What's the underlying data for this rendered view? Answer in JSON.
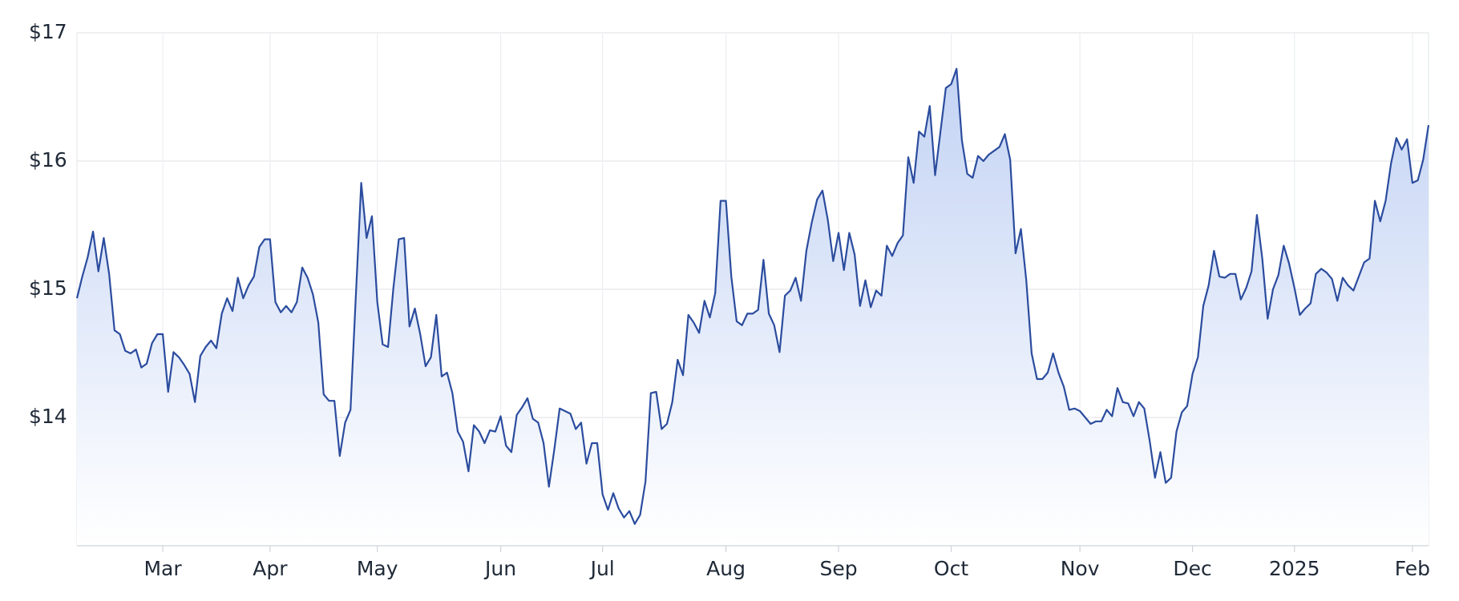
{
  "chart_data": {
    "type": "area",
    "color": "#2b4c9e",
    "fill_top": "#c3d3f4",
    "fill_bottom": "#ffffff",
    "grid": true,
    "values": [
      14.93,
      15.1,
      15.25,
      15.45,
      15.14,
      15.4,
      15.12,
      14.68,
      14.65,
      14.52,
      14.5,
      14.53,
      14.39,
      14.42,
      14.58,
      14.65,
      14.65,
      14.2,
      14.51,
      14.47,
      14.41,
      14.34,
      14.12,
      14.48,
      14.55,
      14.6,
      14.54,
      14.81,
      14.93,
      14.83,
      15.09,
      14.93,
      15.03,
      15.1,
      15.33,
      15.39,
      15.39,
      14.9,
      14.82,
      14.87,
      14.82,
      14.9,
      15.17,
      15.09,
      14.96,
      14.74,
      14.18,
      14.13,
      14.13,
      13.7,
      13.96,
      14.06,
      14.95,
      15.83,
      15.4,
      15.57,
      14.9,
      14.57,
      14.55,
      15.01,
      15.39,
      15.4,
      14.71,
      14.85,
      14.65,
      14.4,
      14.47,
      14.8,
      14.32,
      14.35,
      14.19,
      13.89,
      13.81,
      13.58,
      13.94,
      13.89,
      13.8,
      13.9,
      13.89,
      14.01,
      13.78,
      13.73,
      14.02,
      14.08,
      14.15,
      13.99,
      13.96,
      13.8,
      13.46,
      13.75,
      14.07,
      14.05,
      14.03,
      13.91,
      13.96,
      13.64,
      13.8,
      13.8,
      13.4,
      13.28,
      13.41,
      13.29,
      13.22,
      13.27,
      13.17,
      13.24,
      13.5,
      14.19,
      14.2,
      13.91,
      13.95,
      14.12,
      14.45,
      14.33,
      14.8,
      14.74,
      14.66,
      14.91,
      14.78,
      14.97,
      15.69,
      15.69,
      15.1,
      14.75,
      14.72,
      14.81,
      14.81,
      14.84,
      15.23,
      14.81,
      14.72,
      14.51,
      14.95,
      14.99,
      15.09,
      14.91,
      15.3,
      15.52,
      15.7,
      15.77,
      15.54,
      15.22,
      15.44,
      15.15,
      15.44,
      15.27,
      14.87,
      15.07,
      14.86,
      14.99,
      14.95,
      15.34,
      15.26,
      15.36,
      15.42,
      16.03,
      15.83,
      16.23,
      16.19,
      16.43,
      15.89,
      16.23,
      16.57,
      16.6,
      16.72,
      16.16,
      15.9,
      15.87,
      16.04,
      16.0,
      16.05,
      16.08,
      16.11,
      16.21,
      16.01,
      15.28,
      15.47,
      15.07,
      14.5,
      14.3,
      14.3,
      14.35,
      14.5,
      14.35,
      14.24,
      14.06,
      14.07,
      14.05,
      14.0,
      13.95,
      13.97,
      13.97,
      14.06,
      14.01,
      14.23,
      14.12,
      14.11,
      14.01,
      14.12,
      14.07,
      13.82,
      13.53,
      13.73,
      13.49,
      13.53,
      13.89,
      14.04,
      14.09,
      14.34,
      14.47,
      14.87,
      15.03,
      15.3,
      15.1,
      15.09,
      15.12,
      15.12,
      14.92,
      15.01,
      15.14,
      15.58,
      15.24,
      14.77,
      15.0,
      15.11,
      15.34,
      15.2,
      15.01,
      14.8,
      14.85,
      14.89,
      15.12,
      15.16,
      15.13,
      15.08,
      14.91,
      15.09,
      15.03,
      14.99,
      15.1,
      15.21,
      15.24,
      15.69,
      15.53,
      15.69,
      15.98,
      16.18,
      16.09,
      16.17,
      15.83,
      15.85,
      16.01,
      16.28
    ],
    "xlim": [
      0,
      252
    ],
    "xticks": [
      {
        "value": 16,
        "label": "Mar"
      },
      {
        "value": 36,
        "label": "Apr"
      },
      {
        "value": 56,
        "label": "May"
      },
      {
        "value": 79,
        "label": "Jun"
      },
      {
        "value": 98,
        "label": "Jul"
      },
      {
        "value": 121,
        "label": "Aug"
      },
      {
        "value": 142,
        "label": "Sep"
      },
      {
        "value": 163,
        "label": "Oct"
      },
      {
        "value": 187,
        "label": "Nov"
      },
      {
        "value": 208,
        "label": "Dec"
      },
      {
        "value": 227,
        "label": "2025"
      },
      {
        "value": 249,
        "label": "Feb"
      }
    ],
    "ylim": [
      13,
      17
    ],
    "yticks": [
      {
        "value": 14,
        "label": "$14"
      },
      {
        "value": 15,
        "label": "$15"
      },
      {
        "value": 16,
        "label": "$16"
      },
      {
        "value": 17,
        "label": "$17"
      }
    ]
  }
}
